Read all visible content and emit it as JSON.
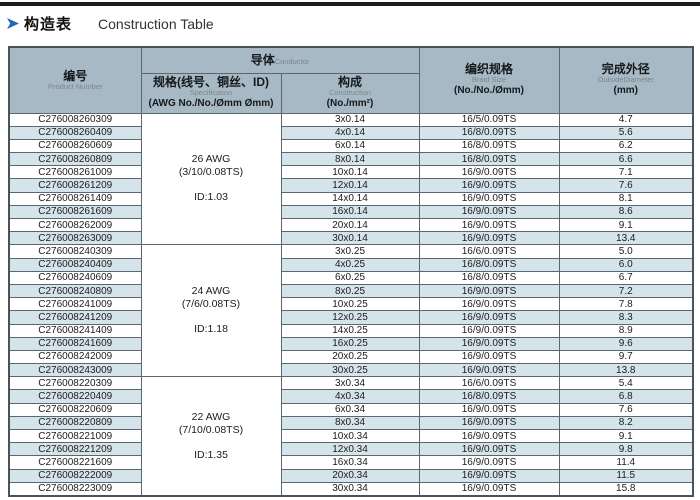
{
  "page": {
    "title_zh": "构造表",
    "title_en": "Construction Table"
  },
  "colors": {
    "accent_blue": "#1d6cb4",
    "header_bg": "#a7b9c4",
    "row_alt": "#d5e3eb",
    "border": "#5c666d",
    "top_rule": "#1a1a1a"
  },
  "table": {
    "header": {
      "product": {
        "zh": "编号",
        "en": "Product Number"
      },
      "conductor": {
        "zh": "导体",
        "en": "Conductor"
      },
      "spec": {
        "zh": "规格(线号、铜丝、ID)",
        "en": "Specification",
        "unit": "(AWG No./No./Ømm Ømm)"
      },
      "construction": {
        "zh": "构成",
        "en": "Construction",
        "unit": "(No./mm²)"
      },
      "braid": {
        "zh": "编织规格",
        "en": "Braid Size",
        "unit": "(No./No./Ømm)"
      },
      "diameter": {
        "zh": "完成外径",
        "en": "OutsideDiameter",
        "unit": "(mm)"
      }
    },
    "groups": [
      {
        "spec": {
          "awg": "26 AWG",
          "strand": "(3/10/0.08TS)",
          "id": "ID:1.03"
        },
        "rows": [
          {
            "pn": "C276008260309",
            "construction": "3x0.14",
            "braid": "16/5/0.09TS",
            "od": "4.7"
          },
          {
            "pn": "C276008260409",
            "construction": "4x0.14",
            "braid": "16/8/0.09TS",
            "od": "5.6"
          },
          {
            "pn": "C276008260609",
            "construction": "6x0.14",
            "braid": "16/8/0.09TS",
            "od": "6.2"
          },
          {
            "pn": "C276008260809",
            "construction": "8x0.14",
            "braid": "16/8/0.09TS",
            "od": "6.6"
          },
          {
            "pn": "C276008261009",
            "construction": "10x0.14",
            "braid": "16/9/0.09TS",
            "od": "7.1"
          },
          {
            "pn": "C276008261209",
            "construction": "12x0.14",
            "braid": "16/9/0.09TS",
            "od": "7.6"
          },
          {
            "pn": "C276008261409",
            "construction": "14x0.14",
            "braid": "16/9/0.09TS",
            "od": "8.1"
          },
          {
            "pn": "C276008261609",
            "construction": "16x0.14",
            "braid": "16/9/0.09TS",
            "od": "8.6"
          },
          {
            "pn": "C276008262009",
            "construction": "20x0.14",
            "braid": "16/9/0.09TS",
            "od": "9.1"
          },
          {
            "pn": "C276008263009",
            "construction": "30x0.14",
            "braid": "16/9/0.09TS",
            "od": "13.4"
          }
        ]
      },
      {
        "spec": {
          "awg": "24 AWG",
          "strand": "(7/6/0.08TS)",
          "id": "ID:1.18"
        },
        "rows": [
          {
            "pn": "C276008240309",
            "construction": "3x0.25",
            "braid": "16/6/0.09TS",
            "od": "5.0"
          },
          {
            "pn": "C276008240409",
            "construction": "4x0.25",
            "braid": "16/8/0.09TS",
            "od": "6.0"
          },
          {
            "pn": "C276008240609",
            "construction": "6x0.25",
            "braid": "16/8/0.09TS",
            "od": "6.7"
          },
          {
            "pn": "C276008240809",
            "construction": "8x0.25",
            "braid": "16/9/0.09TS",
            "od": "7.2"
          },
          {
            "pn": "C276008241009",
            "construction": "10x0.25",
            "braid": "16/9/0.09TS",
            "od": "7.8"
          },
          {
            "pn": "C276008241209",
            "construction": "12x0.25",
            "braid": "16/9/0.09TS",
            "od": "8.3"
          },
          {
            "pn": "C276008241409",
            "construction": "14x0.25",
            "braid": "16/9/0.09TS",
            "od": "8.9"
          },
          {
            "pn": "C276008241609",
            "construction": "16x0.25",
            "braid": "16/9/0.09TS",
            "od": "9.6"
          },
          {
            "pn": "C276008242009",
            "construction": "20x0.25",
            "braid": "16/9/0.09TS",
            "od": "9.7"
          },
          {
            "pn": "C276008243009",
            "construction": "30x0.25",
            "braid": "16/9/0.09TS",
            "od": "13.8"
          }
        ]
      },
      {
        "spec": {
          "awg": "22 AWG",
          "strand": "(7/10/0.08TS)",
          "id": "ID:1.35"
        },
        "rows": [
          {
            "pn": "C276008220309",
            "construction": "3x0.34",
            "braid": "16/6/0.09TS",
            "od": "5.4"
          },
          {
            "pn": "C276008220409",
            "construction": "4x0.34",
            "braid": "16/8/0.09TS",
            "od": "6.8"
          },
          {
            "pn": "C276008220609",
            "construction": "6x0.34",
            "braid": "16/9/0.09TS",
            "od": "7.6"
          },
          {
            "pn": "C276008220809",
            "construction": "8x0.34",
            "braid": "16/9/0.09TS",
            "od": "8.2"
          },
          {
            "pn": "C276008221009",
            "construction": "10x0.34",
            "braid": "16/9/0.09TS",
            "od": "9.1"
          },
          {
            "pn": "C276008221209",
            "construction": "12x0.34",
            "braid": "16/9/0.09TS",
            "od": "9.8"
          },
          {
            "pn": "C276008221609",
            "construction": "16x0.34",
            "braid": "16/9/0.09TS",
            "od": "11.4"
          },
          {
            "pn": "C276008222009",
            "construction": "20x0.34",
            "braid": "16/9/0.09TS",
            "od": "11.5"
          },
          {
            "pn": "C276008223009",
            "construction": "30x0.34",
            "braid": "16/9/0.09TS",
            "od": "15.8"
          }
        ]
      }
    ]
  }
}
